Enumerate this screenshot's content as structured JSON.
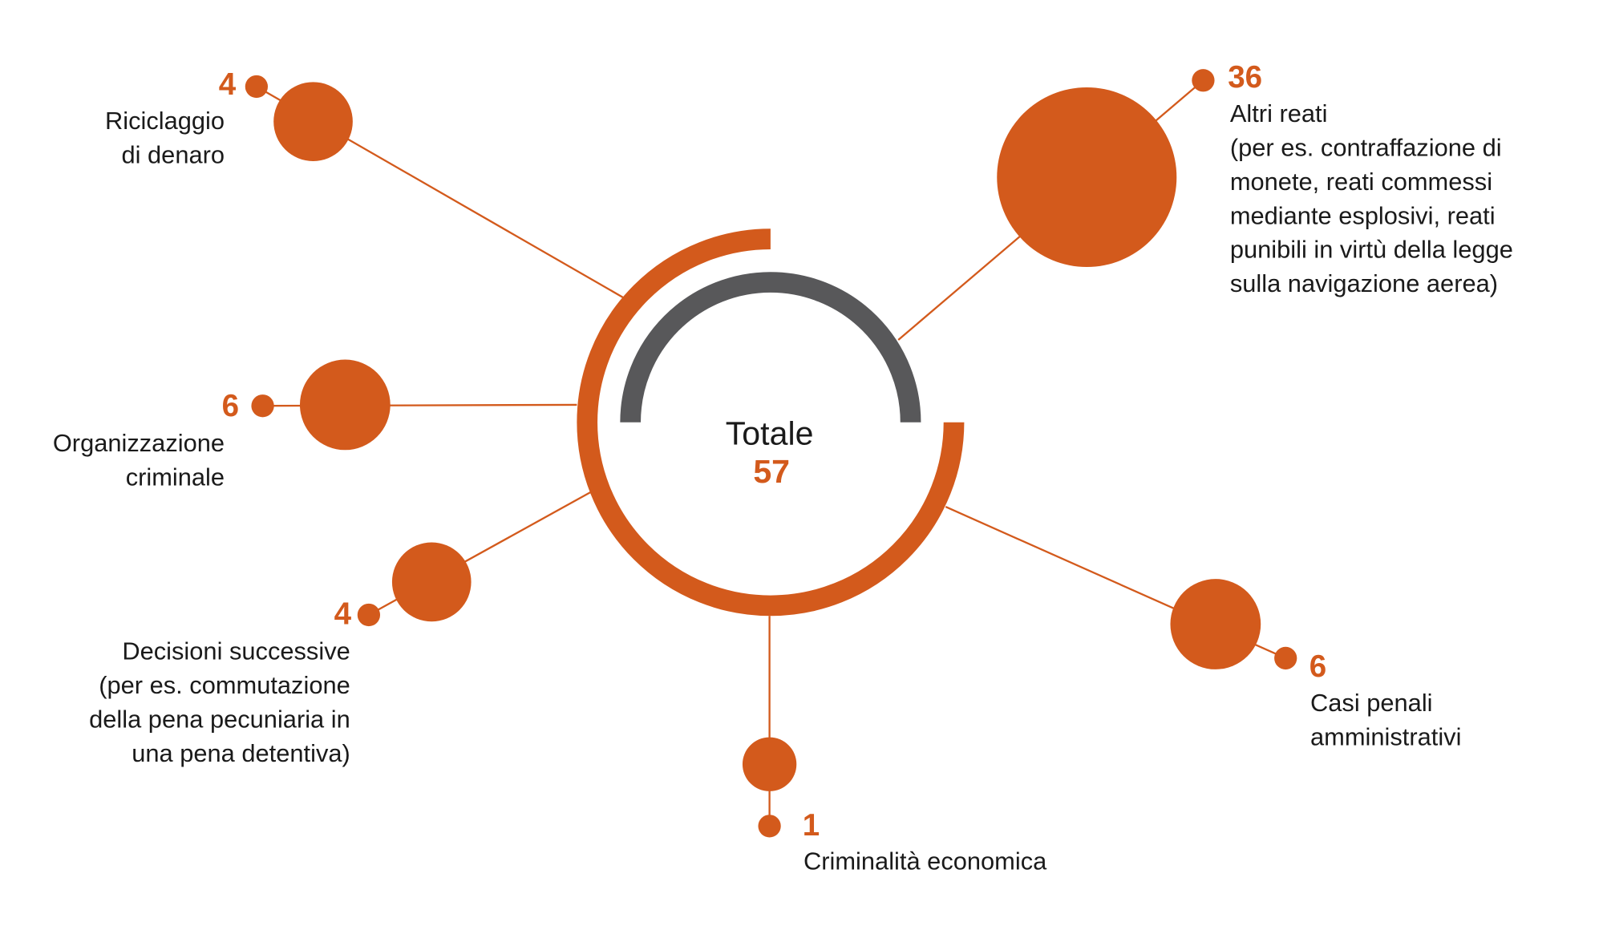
{
  "chart_data": {
    "type": "bubble",
    "center_label": "Totale",
    "total": 57,
    "color": "#d35a1c",
    "ring_color": "#58585a",
    "categories": [
      [
        "Riciclaggio",
        "di denaro"
      ],
      [
        "Organizzazione",
        "criminale"
      ],
      [
        "Decisioni successive",
        "(per es. commutazione",
        "della pena pecuniaria in",
        "una pena detentiva)"
      ],
      [
        "Criminalità economica"
      ],
      [
        "Casi penali",
        "amministrativi"
      ],
      [
        "Altri reati",
        "(per es. contraffazione di",
        "monete, reati commessi",
        "mediante esplosivi, reati",
        "punibili in virtù della legge",
        "sulla navigazione aerea)"
      ]
    ],
    "values": [
      4,
      6,
      4,
      1,
      6,
      36
    ]
  }
}
